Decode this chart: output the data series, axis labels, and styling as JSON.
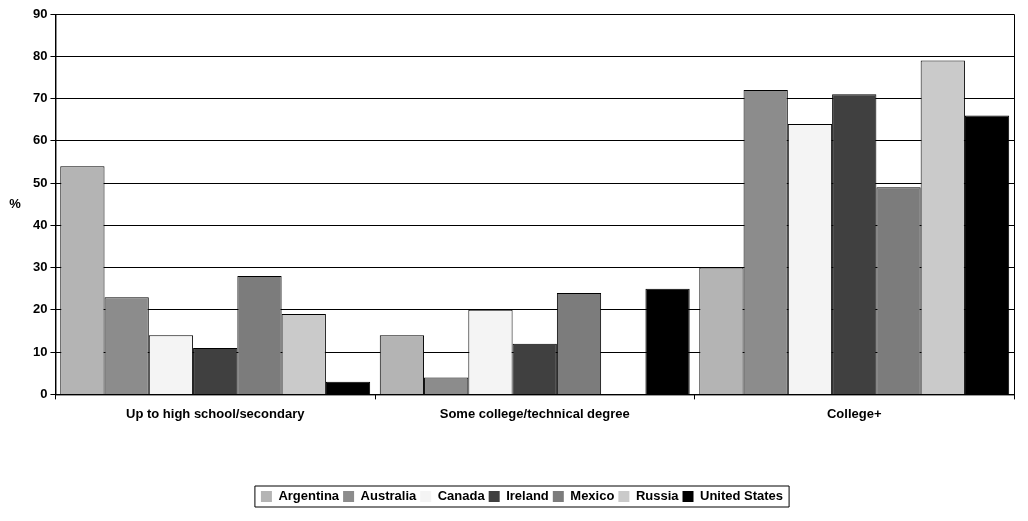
{
  "chart_data": {
    "type": "bar",
    "ylabel": "%",
    "categories": [
      "Up to high school/secondary",
      "Some college/technical degree",
      "College+"
    ],
    "series": [
      {
        "name": "Argentina",
        "color": "#b4b4b4",
        "values": [
          54,
          14,
          30
        ]
      },
      {
        "name": "Australia",
        "color": "#8c8c8c",
        "values": [
          23,
          4,
          72
        ]
      },
      {
        "name": "Canada",
        "color": "#f4f4f4",
        "values": [
          14,
          20,
          64
        ]
      },
      {
        "name": "Ireland",
        "color": "#404040",
        "values": [
          11,
          12,
          71
        ]
      },
      {
        "name": "Mexico",
        "color": "#7c7c7c",
        "values": [
          28,
          24,
          49
        ]
      },
      {
        "name": "Russia",
        "color": "#cacaca",
        "values": [
          19,
          0,
          79
        ]
      },
      {
        "name": "United States",
        "color": "#000000",
        "values": [
          3,
          25,
          66
        ]
      }
    ],
    "ylim": [
      0,
      90
    ],
    "yticks": [
      0,
      10,
      20,
      30,
      40,
      50,
      60,
      70,
      80,
      90
    ],
    "grid": "y",
    "legend": "bottom"
  }
}
